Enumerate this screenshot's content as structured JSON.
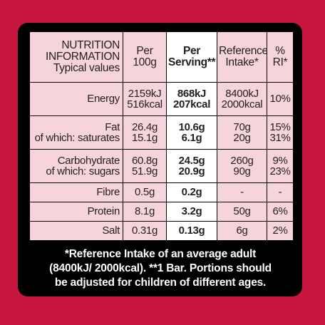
{
  "header": {
    "label_lines": [
      "NUTRITION",
      "INFORMATION",
      "Typical values"
    ],
    "per100": [
      "Per",
      "100g"
    ],
    "serving": [
      "Per",
      "Serving**"
    ],
    "ri": [
      "Reference",
      "Intake*"
    ],
    "pct": [
      "%",
      "RI*"
    ]
  },
  "rows": {
    "energy": {
      "label": [
        "Energy"
      ],
      "per100": [
        "2159kJ",
        "516kcal"
      ],
      "serving": [
        "868kJ",
        "207kcal"
      ],
      "ri": [
        "8400kJ",
        "2000kcal"
      ],
      "pct": [
        "10%"
      ]
    },
    "fat": {
      "label": [
        "Fat",
        "of which: saturates"
      ],
      "per100": [
        "26.4g",
        "15.1g"
      ],
      "serving": [
        "10.6g",
        "6.1g"
      ],
      "ri": [
        "70g",
        "20g"
      ],
      "pct": [
        "15%",
        "31%"
      ]
    },
    "carb": {
      "label": [
        "Carbohydrate",
        "of which: sugars"
      ],
      "per100": [
        "60.8g",
        "51.9g"
      ],
      "serving": [
        "24.5g",
        "20.9g"
      ],
      "ri": [
        "260g",
        "90g"
      ],
      "pct": [
        "9%",
        "23%"
      ]
    },
    "fibre": {
      "label": [
        "Fibre"
      ],
      "per100": [
        "0.5g"
      ],
      "serving": [
        "0.2g"
      ],
      "ri": [
        "-"
      ],
      "pct": [
        "-"
      ]
    },
    "protein": {
      "label": [
        "Protein"
      ],
      "per100": [
        "8.1g"
      ],
      "serving": [
        "3.2g"
      ],
      "ri": [
        "50g"
      ],
      "pct": [
        "6%"
      ]
    },
    "salt": {
      "label": [
        "Salt"
      ],
      "per100": [
        "0.31g"
      ],
      "serving": [
        "0.13g"
      ],
      "ri": [
        "6g"
      ],
      "pct": [
        "2%"
      ]
    }
  },
  "footnote": [
    "*Reference Intake of an average adult",
    "(8400kJ/ 2000kcal). **1 Bar. Portions should",
    "be adjusted for children of different ages."
  ],
  "colors": {
    "background": "#c8173f",
    "panel": "#000000",
    "cell": "#f6d4dc",
    "serving_cell": "#ffffff"
  }
}
